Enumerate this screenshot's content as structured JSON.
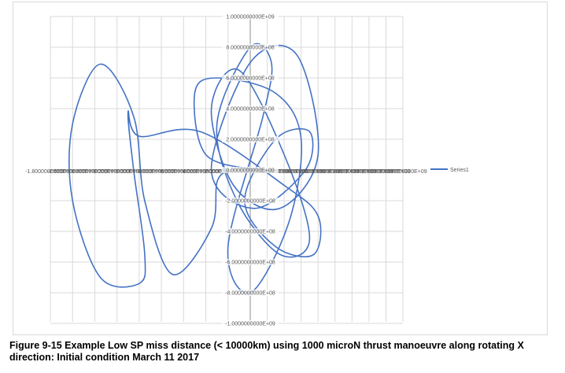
{
  "chart_data": {
    "type": "scatter",
    "title": "",
    "xlabel": "",
    "ylabel": "",
    "x_tick_labels": [
      "-1.8000000000E+09",
      "-1.6000000000E+09",
      "-1.4000000000E+09",
      "-1.2000000000E+09",
      "-1.0000000000E+09",
      "-8.0000000000E+08",
      "-6.0000000000E+08",
      "-4.0000000000E+08",
      "-2.0000000000E+08",
      "0.0000000000E+00",
      "2.0000000000E+08",
      "4.0000000000E+08",
      "6.0000000000E+08",
      "8.0000000000E+08",
      "1.0000000000E+09",
      "1.2000000000E+09",
      "1.4000000000E+09",
      "1.6000000000E+09",
      "1.8000000000E+09"
    ],
    "y_tick_labels": [
      "1.0000000000E+09",
      "8.0000000000E+08",
      "6.0000000000E+08",
      "4.0000000000E+08",
      "2.0000000000E+08",
      "0.0000000000E+00",
      "-2.0000000000E+08",
      "-4.0000000000E+08",
      "-6.0000000000E+08",
      "-8.0000000000E+08",
      "-1.0000000000E+09"
    ],
    "xlim": [
      -1800000000,
      1800000000
    ],
    "ylim": [
      -1000000000,
      1000000000
    ],
    "grid": true,
    "legend_position": "right",
    "series": [
      {
        "name": "Series1",
        "color": "#4472C4",
        "x": [
          100000000.0,
          -400000000.0,
          -500000000.0,
          -300000000.0,
          300000000.0,
          600000000.0,
          450000000.0,
          0,
          -200000000.0,
          150000000.0,
          250000000.0,
          0,
          -300000000.0,
          -120000000.0,
          350000000.0,
          700000000.0,
          400000000.0,
          -100000000.0,
          -350000000.0,
          -150000000.0,
          350000000.0,
          800000000.0,
          550000000.0,
          0,
          -350000000.0,
          50000000.0,
          650000000.0,
          700000000.0,
          300000000.0,
          -50000000.0,
          300000000.0,
          750000000.0,
          800000000.0,
          400000000.0,
          -450000000.0,
          -1000000000.0,
          -1100000000.0,
          -1050000000.0,
          -950000000.0,
          -1000000000.0,
          -1350000000.0,
          -1600000000.0,
          -1600000000.0,
          -1350000000.0,
          -1050000000.0,
          -950000000.0,
          -700000000.0,
          -350000000.0,
          -300000000.0,
          -200000000.0
        ],
        "y": [
          0,
          100000000.0,
          500000000.0,
          600000000.0,
          500000000.0,
          200000000.0,
          -350000000.0,
          -800000000.0,
          -500000000.0,
          350000000.0,
          700000000.0,
          800000000.0,
          300000000.0,
          -200000000.0,
          -550000000.0,
          -450000000.0,
          100000000.0,
          650000000.0,
          400000000.0,
          -100000000.0,
          -250000000.0,
          100000000.0,
          750000000.0,
          700000000.0,
          0,
          -250000000.0,
          0,
          250000000.0,
          200000000.0,
          -200000000.0,
          -500000000.0,
          -550000000.0,
          -300000000.0,
          -100000000.0,
          250000000.0,
          220000000.0,
          380000000.0,
          0,
          -550000000.0,
          -740000000.0,
          -700000000.0,
          -200000000.0,
          300000000.0,
          690000000.0,
          350000000.0,
          -200000000.0,
          -680000000.0,
          -380000000.0,
          -80000000.0,
          0
        ]
      }
    ]
  },
  "legend": {
    "label": "Series1"
  },
  "caption": "Figure 9-15 Example Low SP miss distance (< 10000km) using 1000 microN thrust manoeuvre along rotating X direction: Initial condition March 11 2017"
}
